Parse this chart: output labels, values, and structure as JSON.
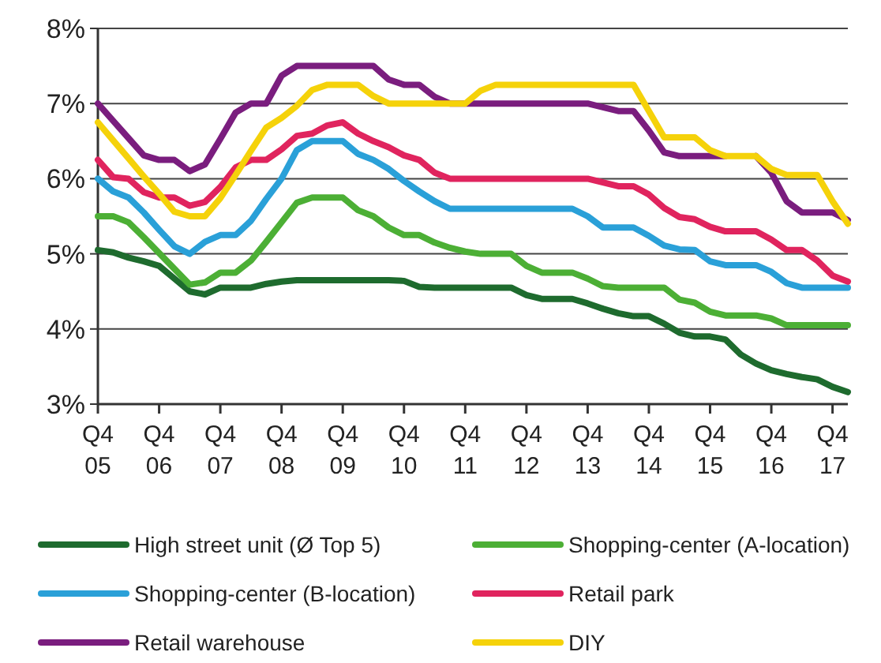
{
  "chart_data": {
    "type": "line",
    "categories": [
      "Q4 05",
      null,
      null,
      null,
      "Q4 06",
      null,
      null,
      null,
      "Q4 07",
      null,
      null,
      null,
      "Q4 08",
      null,
      null,
      null,
      "Q4 09",
      null,
      null,
      null,
      "Q4 10",
      null,
      null,
      null,
      "Q4 11",
      null,
      null,
      null,
      "Q4 12",
      null,
      null,
      null,
      "Q4 13",
      null,
      null,
      null,
      "Q4 14",
      null,
      null,
      null,
      "Q4 15",
      null,
      null,
      null,
      "Q4 16",
      null,
      null,
      null,
      "Q4 17",
      null
    ],
    "ylim": [
      3,
      8
    ],
    "yticks": [
      {
        "value": 3,
        "label": "3%"
      },
      {
        "value": 4,
        "label": "4%"
      },
      {
        "value": 5,
        "label": "5%"
      },
      {
        "value": 6,
        "label": "6%"
      },
      {
        "value": 7,
        "label": "7%"
      },
      {
        "value": 8,
        "label": "8%"
      }
    ],
    "grid": "y",
    "legend": "bottom",
    "marker": "none",
    "line_style": "solid",
    "series": [
      {
        "name": "High street unit (Ø Top 5)",
        "color": "#1e6b2e",
        "values": [
          5.05,
          5.02,
          4.95,
          4.9,
          4.84,
          4.67,
          4.5,
          4.46,
          4.55,
          4.55,
          4.55,
          4.6,
          4.63,
          4.65,
          4.65,
          4.65,
          4.65,
          4.65,
          4.65,
          4.65,
          4.64,
          4.56,
          4.55,
          4.55,
          4.55,
          4.55,
          4.55,
          4.55,
          4.45,
          4.4,
          4.4,
          4.4,
          4.34,
          4.27,
          4.21,
          4.17,
          4.17,
          4.07,
          3.95,
          3.9,
          3.9,
          3.86,
          3.66,
          3.54,
          3.45,
          3.4,
          3.36,
          3.33,
          3.23,
          3.16
        ]
      },
      {
        "name": "Shopping-center (A-location)",
        "color": "#4caf35",
        "values": [
          5.5,
          5.5,
          5.42,
          5.22,
          5.01,
          4.8,
          4.59,
          4.62,
          4.75,
          4.75,
          4.91,
          5.16,
          5.42,
          5.68,
          5.75,
          5.75,
          5.75,
          5.58,
          5.5,
          5.35,
          5.25,
          5.25,
          5.15,
          5.08,
          5.03,
          5.0,
          5.0,
          5.0,
          4.84,
          4.75,
          4.75,
          4.75,
          4.67,
          4.57,
          4.55,
          4.55,
          4.55,
          4.55,
          4.39,
          4.35,
          4.23,
          4.18,
          4.18,
          4.18,
          4.14,
          4.05,
          4.05,
          4.05,
          4.05,
          4.05
        ]
      },
      {
        "name": "Shopping-center (B-location)",
        "color": "#2aa0d8",
        "values": [
          6.0,
          5.83,
          5.75,
          5.55,
          5.32,
          5.1,
          5.0,
          5.16,
          5.25,
          5.25,
          5.44,
          5.73,
          6.0,
          6.38,
          6.5,
          6.5,
          6.5,
          6.33,
          6.25,
          6.13,
          5.97,
          5.83,
          5.7,
          5.6,
          5.6,
          5.6,
          5.6,
          5.6,
          5.6,
          5.6,
          5.6,
          5.6,
          5.5,
          5.35,
          5.35,
          5.35,
          5.24,
          5.11,
          5.06,
          5.05,
          4.9,
          4.85,
          4.85,
          4.85,
          4.76,
          4.61,
          4.55,
          4.55,
          4.55,
          4.55
        ]
      },
      {
        "name": "Retail park",
        "color": "#e0245e",
        "values": [
          6.25,
          6.02,
          6.0,
          5.82,
          5.75,
          5.75,
          5.64,
          5.69,
          5.89,
          6.15,
          6.25,
          6.25,
          6.39,
          6.57,
          6.6,
          6.71,
          6.75,
          6.6,
          6.5,
          6.42,
          6.31,
          6.25,
          6.08,
          6.0,
          6.0,
          6.0,
          6.0,
          6.0,
          6.0,
          6.0,
          6.0,
          6.0,
          6.0,
          5.95,
          5.9,
          5.9,
          5.79,
          5.61,
          5.49,
          5.46,
          5.36,
          5.3,
          5.3,
          5.3,
          5.19,
          5.05,
          5.05,
          4.91,
          4.71,
          4.63
        ]
      },
      {
        "name": "Retail warehouse",
        "color": "#7a1d7e",
        "values": [
          7.0,
          6.77,
          6.54,
          6.31,
          6.25,
          6.25,
          6.1,
          6.19,
          6.53,
          6.88,
          7.0,
          7.0,
          7.37,
          7.5,
          7.5,
          7.5,
          7.5,
          7.5,
          7.5,
          7.32,
          7.25,
          7.25,
          7.09,
          7.0,
          7.0,
          7.0,
          7.0,
          7.0,
          7.0,
          7.0,
          7.0,
          7.0,
          7.0,
          6.95,
          6.9,
          6.9,
          6.64,
          6.35,
          6.3,
          6.3,
          6.3,
          6.3,
          null,
          6.3,
          6.08,
          5.7,
          5.55,
          5.55,
          5.55,
          5.45
        ]
      },
      {
        "name": "DIY",
        "color": "#f5d20a",
        "values": [
          6.75,
          6.51,
          6.27,
          6.03,
          5.8,
          5.56,
          5.5,
          5.5,
          5.74,
          6.05,
          6.37,
          6.68,
          6.81,
          6.97,
          7.18,
          7.25,
          7.25,
          7.25,
          7.1,
          7.0,
          7.0,
          7.0,
          7.0,
          7.0,
          7.0,
          7.17,
          7.25,
          7.25,
          7.25,
          7.25,
          7.25,
          7.25,
          7.25,
          7.25,
          7.25,
          7.25,
          6.9,
          6.55,
          6.55,
          6.55,
          6.38,
          6.3,
          6.3,
          6.3,
          6.13,
          6.05,
          6.05,
          6.05,
          5.7,
          5.4
        ]
      }
    ]
  }
}
